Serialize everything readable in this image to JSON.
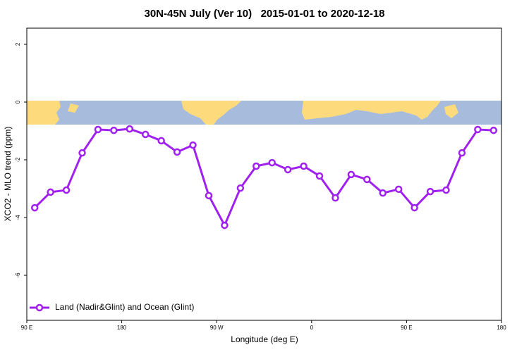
{
  "chart_data": {
    "type": "line",
    "title": "30N-45N July (Ver 10)   2015-01-01 to 2020-12-18",
    "x_label": "Longitude (deg E)",
    "y_label": "XCO2 - MLO trend (ppm)",
    "x": [
      97.5,
      112.5,
      127.5,
      142.5,
      157.5,
      172.5,
      187.5,
      202.5,
      217.5,
      232.5,
      247.5,
      262.5,
      277.5,
      292.5,
      307.5,
      322.5,
      337.5,
      352.5,
      367.5,
      382.5,
      397.5,
      412.5,
      427.5,
      442.5,
      457.5,
      472.5,
      487.5,
      502.5,
      517.5,
      532.5
    ],
    "series": [
      {
        "name": "Land (Nadir&Glint) and Ocean (Glint)",
        "color": "#a020f0",
        "values": [
          -3.66,
          -3.12,
          -3.05,
          -1.76,
          -0.95,
          -0.98,
          -0.93,
          -1.12,
          -1.34,
          -1.73,
          -1.49,
          -3.24,
          -4.27,
          -2.98,
          -2.22,
          -2.1,
          -2.34,
          -2.22,
          -2.56,
          -3.32,
          -2.51,
          -2.68,
          -3.15,
          -3.02,
          -3.66,
          -3.1,
          -3.05,
          -1.76,
          -0.95,
          -0.98
        ]
      }
    ],
    "xlim": [
      90,
      540
    ],
    "xticks": [
      {
        "value": 90,
        "label": "90 E"
      },
      180,
      {
        "value": 270,
        "label": "90 W"
      },
      {
        "value": 360,
        "label": "0"
      },
      {
        "value": 450,
        "label": "90 E"
      },
      {
        "value": 540,
        "label": "180"
      }
    ],
    "ylim": [
      -7.56,
      2.56
    ],
    "yticks": [
      2,
      0,
      -2,
      -4,
      -6
    ],
    "legend": "bottomleft"
  }
}
